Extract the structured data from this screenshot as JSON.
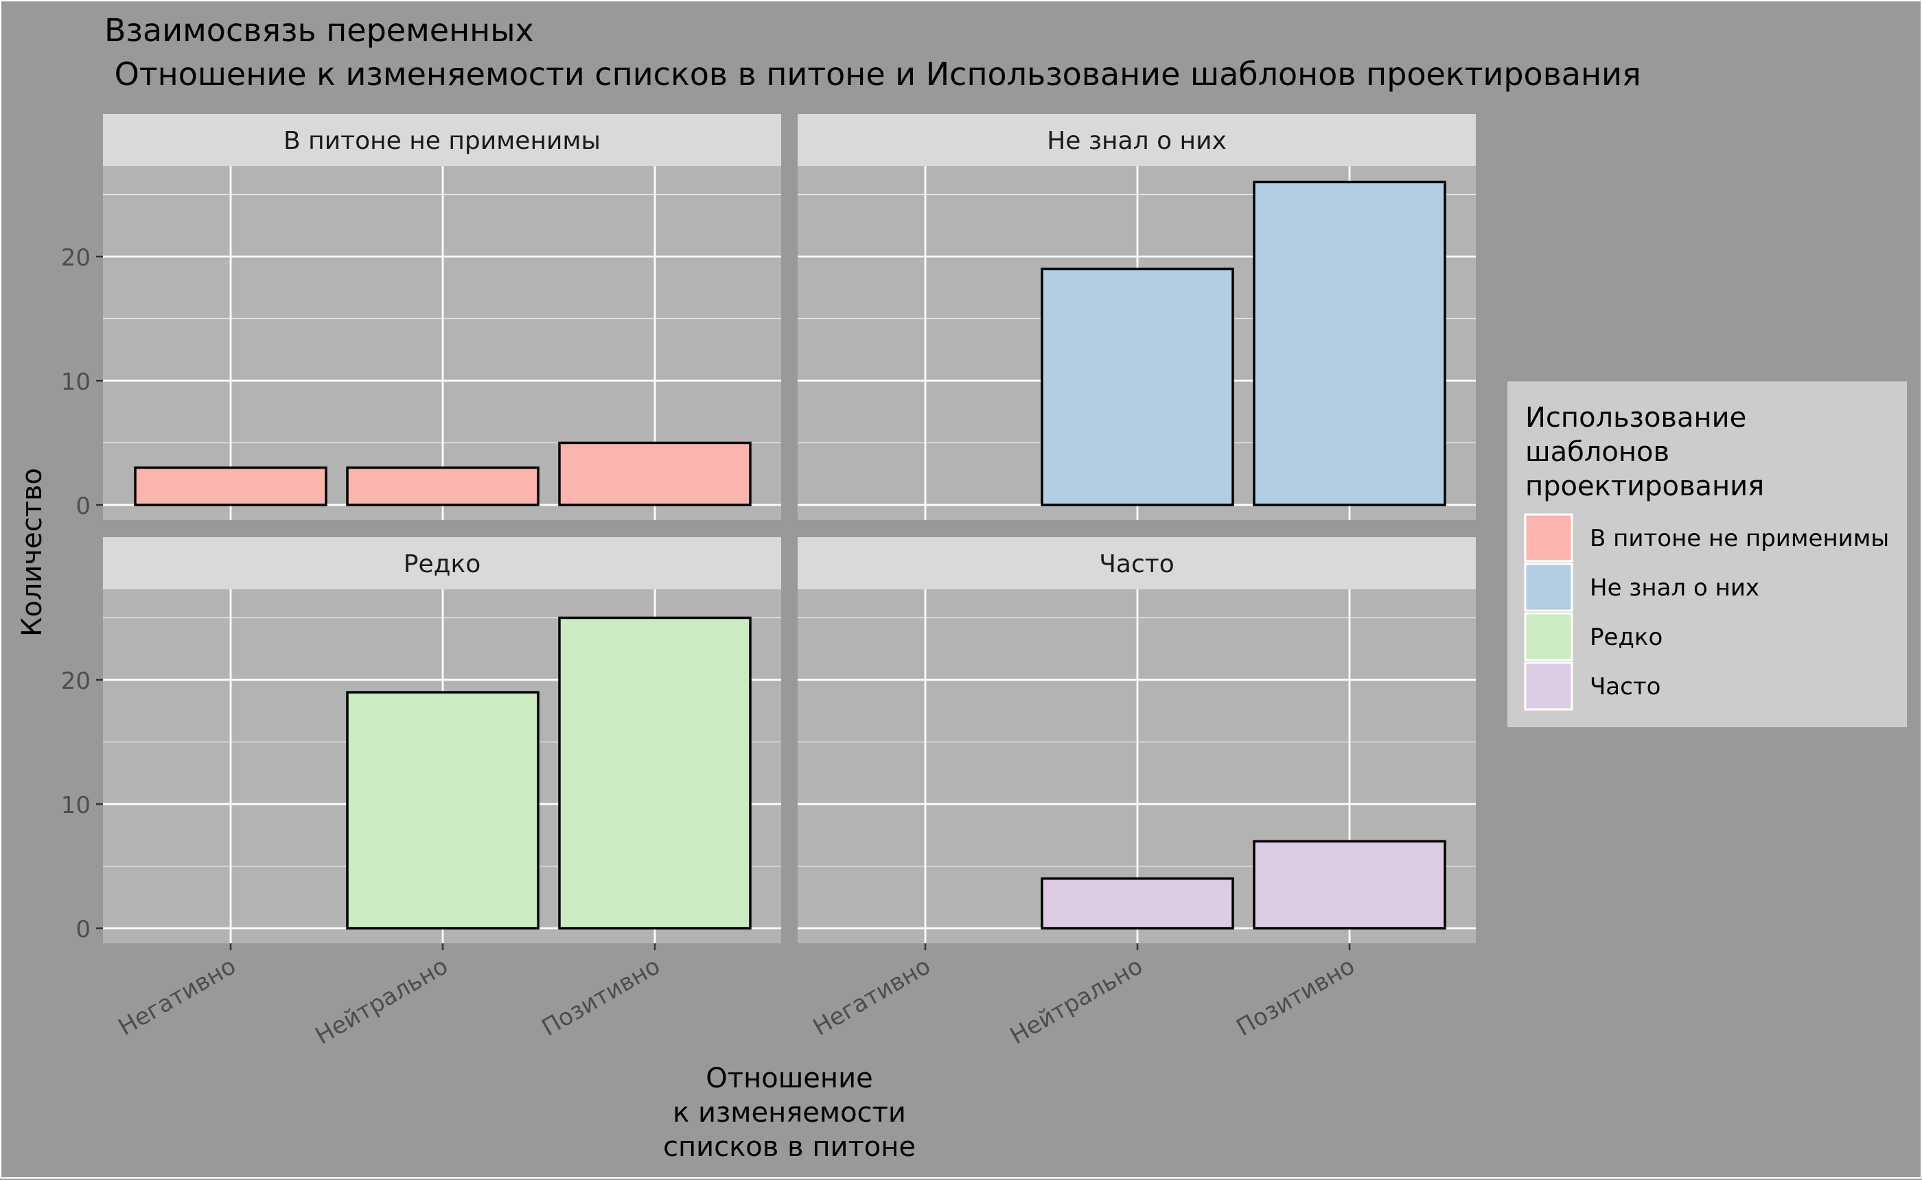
{
  "chart_data": {
    "type": "bar",
    "title_line1": "Взаимосвязь переменных",
    "title_line2": " Отношение к изменяемости списков в питоне и Использование шаблонов проектирования",
    "xlabel_lines": [
      "Отношение",
      "к изменяемости",
      "списков в питоне"
    ],
    "ylabel": "Количество",
    "categories": [
      "Негативно",
      "Нейтрально",
      "Позитивно"
    ],
    "yticks": [
      0,
      10,
      20
    ],
    "ylim": [
      0,
      27
    ],
    "grid": true,
    "legend": {
      "title_lines": [
        "Использование",
        "шаблонов",
        "проектирования"
      ],
      "position": "right"
    },
    "panels": [
      {
        "name": "В питоне не применимы",
        "color": "#FBB4AE",
        "values": [
          3,
          3,
          5
        ]
      },
      {
        "name": "Не знал о них",
        "color": "#B3CDE3",
        "values": [
          0,
          19,
          26
        ]
      },
      {
        "name": "Редко",
        "color": "#CCEBC5",
        "values": [
          0,
          19,
          25
        ]
      },
      {
        "name": "Часто",
        "color": "#DECBE4",
        "values": [
          0,
          4,
          7
        ]
      }
    ],
    "colors": {
      "panel_bg": "#B3B3B3",
      "strip_bg": "#D9D9D9",
      "plot_bg": "#999999",
      "legend_bg": "#CCCCCC",
      "grid": "#FFFFFF"
    }
  }
}
